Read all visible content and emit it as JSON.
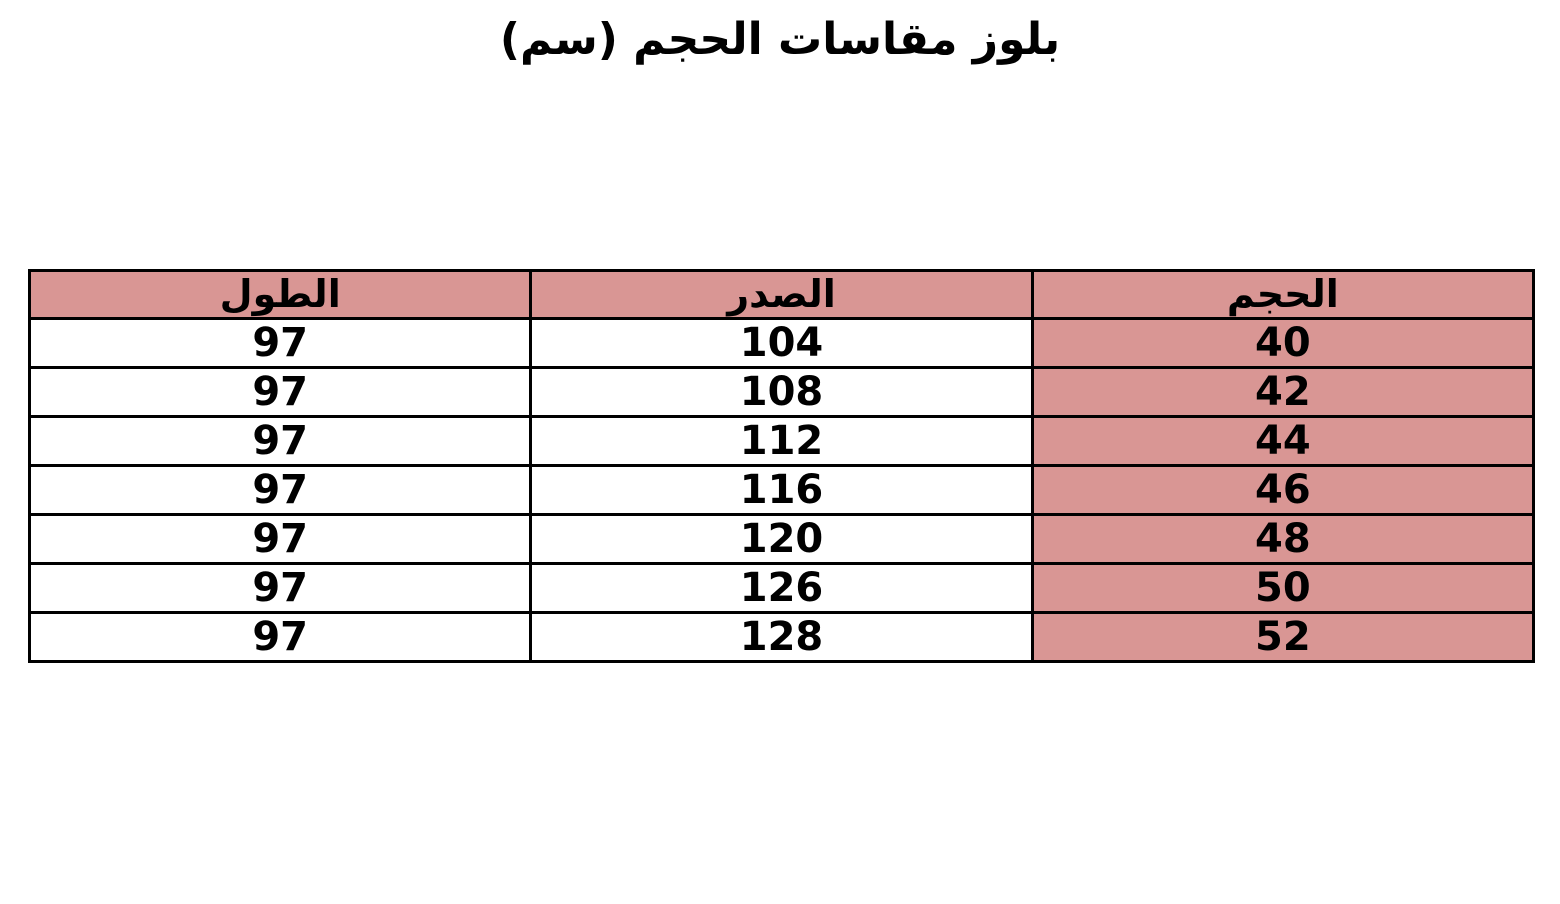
{
  "title": "بلوز مقاسات الحجم (سم)",
  "table": {
    "columns": [
      {
        "key": "size",
        "label": "الحجم"
      },
      {
        "key": "chest",
        "label": "الصدر"
      },
      {
        "key": "length",
        "label": "الطول"
      }
    ],
    "rows": [
      {
        "size": "40",
        "chest": "104",
        "length": "97"
      },
      {
        "size": "42",
        "chest": "108",
        "length": "97"
      },
      {
        "size": "44",
        "chest": "112",
        "length": "97"
      },
      {
        "size": "46",
        "chest": "116",
        "length": "97"
      },
      {
        "size": "48",
        "chest": "120",
        "length": "97"
      },
      {
        "size": "50",
        "chest": "126",
        "length": "97"
      },
      {
        "size": "52",
        "chest": "128",
        "length": "97"
      }
    ]
  },
  "colors": {
    "highlight_bg": "#d99694",
    "border": "#000000",
    "text": "#000000",
    "page_bg": "#ffffff"
  },
  "chart_data": {
    "type": "table",
    "title": "بلوز مقاسات الحجم (سم)",
    "columns": [
      "الحجم",
      "الصدر",
      "الطول"
    ],
    "rows": [
      [
        40,
        104,
        97
      ],
      [
        42,
        108,
        97
      ],
      [
        44,
        112,
        97
      ],
      [
        46,
        116,
        97
      ],
      [
        48,
        120,
        97
      ],
      [
        50,
        126,
        97
      ],
      [
        52,
        128,
        97
      ]
    ],
    "layout": {
      "direction": "rtl",
      "highlighted_column": "الحجم",
      "highlight_color": "#d99694",
      "header_bg": "#d99694",
      "grid": "on"
    }
  }
}
